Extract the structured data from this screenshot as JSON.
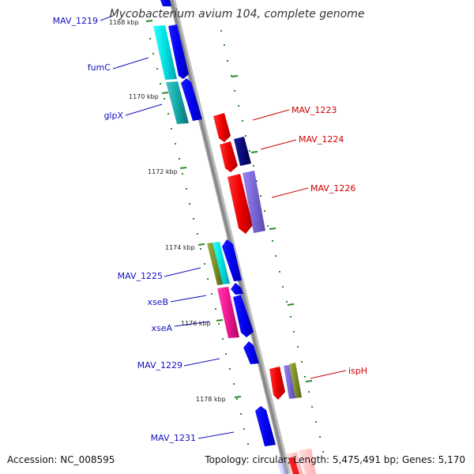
{
  "title": "Mycobacterium avium 104, complete genome",
  "footer": {
    "accession": "Accession: NC_008595",
    "summary": "Topology: circular; Length: 5,475,491 bp; Genes: 5,170"
  },
  "colors": {
    "left_label": "#1010c0",
    "right_label": "#cc0000",
    "backbone": "#8a8a8a",
    "tick": "#2a8a2a",
    "dot": "#2a8a2a"
  },
  "ticks": [
    {
      "label": "1168 kbp"
    },
    {
      "label": "1170 kbp"
    },
    {
      "label": "1172 kbp"
    },
    {
      "label": "1174 kbp"
    },
    {
      "label": "1176 kbp"
    },
    {
      "label": "1178 kbp"
    }
  ],
  "genes": [
    {
      "name": "MAV_1219",
      "strand": "left"
    },
    {
      "name": "fumC",
      "strand": "left"
    },
    {
      "name": "glpX",
      "strand": "left"
    },
    {
      "name": "MAV_1223",
      "strand": "right"
    },
    {
      "name": "MAV_1224",
      "strand": "right"
    },
    {
      "name": "MAV_1226",
      "strand": "right"
    },
    {
      "name": "MAV_1225",
      "strand": "left"
    },
    {
      "name": "xseB",
      "strand": "left"
    },
    {
      "name": "xseA",
      "strand": "left"
    },
    {
      "name": "MAV_1229",
      "strand": "left"
    },
    {
      "name": "ispH",
      "strand": "right"
    },
    {
      "name": "MAV_1231",
      "strand": "left"
    }
  ]
}
